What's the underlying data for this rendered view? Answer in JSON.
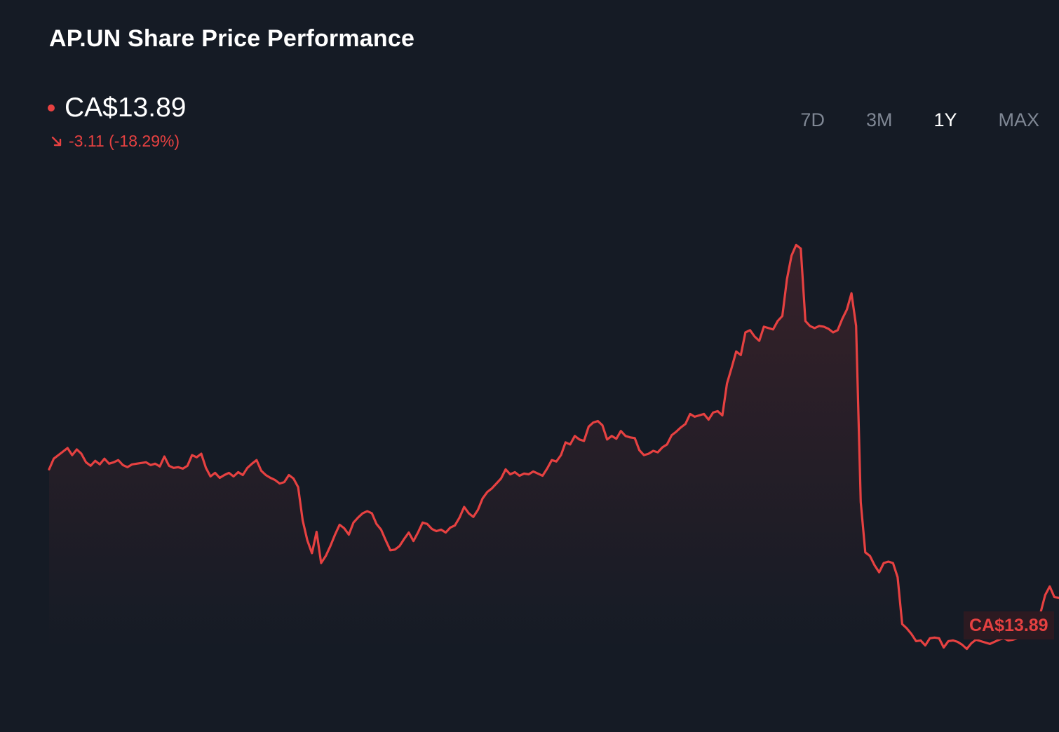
{
  "title": "AP.UN Share Price Performance",
  "price": {
    "current": "CA$13.89",
    "change": "-3.11 (-18.29%)"
  },
  "range_tabs": [
    "7D",
    "3M",
    "1Y",
    "MAX"
  ],
  "active_range": "1Y",
  "last_label": "CA$13.89",
  "colors": {
    "background": "#151b25",
    "line": "#e64141",
    "muted": "#7f8794"
  },
  "chart_data": {
    "type": "area",
    "series": [
      {
        "values": [
          15.7,
          15.85,
          15.9,
          15.95,
          16.0,
          15.9,
          15.98,
          15.92,
          15.8,
          15.75,
          15.82,
          15.77,
          15.85,
          15.78,
          15.8,
          15.83,
          15.76,
          15.73,
          15.77,
          15.78,
          15.79,
          15.8,
          15.76,
          15.78,
          15.74,
          15.88,
          15.75,
          15.72,
          15.73,
          15.71,
          15.75,
          15.9,
          15.87,
          15.92,
          15.72,
          15.6,
          15.65,
          15.58,
          15.62,
          15.65,
          15.6,
          15.66,
          15.62,
          15.72,
          15.78,
          15.83,
          15.68,
          15.62,
          15.58,
          15.55,
          15.5,
          15.52,
          15.62,
          15.57,
          15.45,
          14.98,
          14.7,
          14.52,
          14.82,
          14.38,
          14.48,
          14.62,
          14.78,
          14.92,
          14.87,
          14.78,
          14.95,
          15.02,
          15.08,
          15.11,
          15.08,
          14.93,
          14.85,
          14.7,
          14.56,
          14.57,
          14.62,
          14.72,
          14.81,
          14.69,
          14.81,
          14.95,
          14.93,
          14.86,
          14.83,
          14.85,
          14.81,
          14.88,
          14.91,
          15.02,
          15.17,
          15.08,
          15.03,
          15.13,
          15.29,
          15.38,
          15.43,
          15.5,
          15.57,
          15.7,
          15.63,
          15.66,
          15.61,
          15.64,
          15.63,
          15.67,
          15.64,
          15.61,
          15.71,
          15.83,
          15.81,
          15.9,
          16.08,
          16.05,
          16.17,
          16.12,
          16.1,
          16.3,
          16.36,
          16.38,
          16.32,
          16.12,
          16.17,
          16.13,
          16.24,
          16.17,
          16.15,
          16.14,
          15.97,
          15.9,
          15.92,
          15.96,
          15.94,
          16.01,
          16.05,
          16.18,
          16.23,
          16.29,
          16.34,
          16.48,
          16.44,
          16.46,
          16.48,
          16.4,
          16.5,
          16.52,
          16.46,
          16.91,
          17.13,
          17.36,
          17.31,
          17.63,
          17.66,
          17.57,
          17.51,
          17.71,
          17.69,
          17.67,
          17.79,
          17.86,
          18.38,
          18.71,
          18.86,
          18.81,
          17.79,
          17.72,
          17.69,
          17.72,
          17.71,
          17.68,
          17.63,
          17.66,
          17.82,
          17.95,
          18.18,
          17.72,
          15.24,
          14.53,
          14.48,
          14.35,
          14.25,
          14.38,
          14.4,
          14.38,
          14.18,
          13.52,
          13.46,
          13.38,
          13.28,
          13.29,
          13.22,
          13.32,
          13.33,
          13.32,
          13.19,
          13.28,
          13.29,
          13.27,
          13.23,
          13.17,
          13.25,
          13.3,
          13.28,
          13.26,
          13.24,
          13.27,
          13.3,
          13.32,
          13.29,
          13.3,
          13.32,
          13.34,
          13.34,
          13.38,
          13.51,
          13.68,
          13.93,
          14.05,
          13.9,
          13.89
        ]
      }
    ],
    "ylim": [
      12.0,
      20.0
    ],
    "grid": false,
    "legend": "none"
  }
}
